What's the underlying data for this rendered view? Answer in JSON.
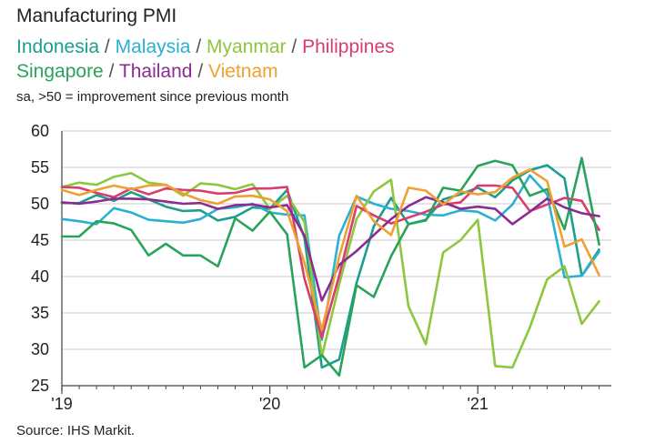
{
  "chart_data": {
    "type": "line",
    "title": "Manufacturing PMI",
    "subtitle": "sa, >50 = improvement since previous month",
    "source": "Source: IHS Markit.",
    "separator": "/",
    "xlabel": "",
    "ylabel": "",
    "ylim": [
      25,
      60
    ],
    "yticks": [
      60,
      55,
      50,
      45,
      40,
      35,
      30,
      25
    ],
    "xticks": [
      {
        "label": "'19",
        "month_index": 0
      },
      {
        "label": "'20",
        "month_index": 12
      },
      {
        "label": "'21",
        "month_index": 24
      }
    ],
    "months": [
      "Jan 19",
      "Feb 19",
      "Mar 19",
      "Apr 19",
      "May 19",
      "Jun 19",
      "Jul 19",
      "Aug 19",
      "Sep 19",
      "Oct 19",
      "Nov 19",
      "Dec 19",
      "Jan 20",
      "Feb 20",
      "Mar 20",
      "Apr 20",
      "May 20",
      "Jun 20",
      "Jul 20",
      "Aug 20",
      "Sep 20",
      "Oct 20",
      "Nov 20",
      "Dec 20",
      "Jan 21",
      "Feb 21",
      "Mar 21",
      "Apr 21",
      "May 21",
      "Jun 21",
      "Jul 21",
      "Aug 21"
    ],
    "grid": "horizontal",
    "series": [
      {
        "name": "Indonesia",
        "color": "#1a9f8f",
        "values": [
          50.1,
          50.1,
          51.2,
          50.4,
          51.6,
          50.6,
          49.6,
          49.0,
          49.1,
          47.7,
          48.2,
          49.5,
          49.3,
          51.9,
          45.3,
          27.5,
          28.6,
          39.1,
          46.9,
          50.8,
          47.2,
          47.8,
          50.6,
          51.3,
          52.2,
          50.9,
          53.2,
          54.6,
          55.3,
          53.5,
          40.1,
          43.7
        ]
      },
      {
        "name": "Malaysia",
        "color": "#2bb0d4",
        "values": [
          47.9,
          47.6,
          47.2,
          49.4,
          48.8,
          47.8,
          47.6,
          47.4,
          47.9,
          49.3,
          49.5,
          50.0,
          48.8,
          48.5,
          48.4,
          31.3,
          45.6,
          51.0,
          50.0,
          49.3,
          49.0,
          48.5,
          48.4,
          49.1,
          48.9,
          47.7,
          49.9,
          53.9,
          51.3,
          39.9,
          40.1,
          43.4
        ]
      },
      {
        "name": "Myanmar",
        "color": "#8dc63f",
        "values": [
          52.3,
          52.9,
          52.6,
          53.7,
          54.2,
          52.9,
          52.6,
          51.1,
          52.8,
          52.6,
          52.0,
          52.7,
          49.3,
          51.1,
          47.5,
          29.0,
          38.9,
          47.9,
          51.7,
          53.3,
          35.9,
          30.7,
          43.3,
          45.0,
          47.8,
          27.7,
          27.5,
          33.0,
          39.6,
          41.4,
          33.5,
          36.6
        ]
      },
      {
        "name": "Philippines",
        "color": "#d93c6e",
        "values": [
          52.3,
          52.2,
          51.5,
          50.9,
          52.1,
          51.3,
          52.1,
          51.9,
          51.8,
          51.4,
          51.5,
          52.1,
          52.1,
          52.3,
          39.7,
          31.6,
          40.1,
          49.7,
          48.4,
          47.3,
          48.1,
          48.9,
          49.9,
          50.2,
          52.5,
          52.5,
          52.2,
          49.0,
          49.9,
          50.8,
          50.4,
          46.4
        ]
      },
      {
        "name": "Singapore",
        "color": "#2aa35a",
        "values": [
          45.5,
          45.5,
          47.6,
          47.3,
          46.4,
          42.9,
          44.5,
          42.9,
          42.9,
          41.4,
          48.0,
          46.3,
          48.9,
          45.8,
          27.5,
          29.2,
          26.4,
          38.8,
          37.2,
          42.8,
          47.2,
          47.7,
          52.2,
          51.8,
          55.2,
          55.9,
          55.3,
          51.1,
          52.0,
          46.5,
          56.3,
          44.4
        ]
      },
      {
        "name": "Thailand",
        "color": "#8b2c8f",
        "values": [
          50.2,
          50.0,
          50.3,
          50.7,
          50.7,
          50.6,
          50.3,
          50.0,
          50.1,
          49.3,
          49.8,
          49.9,
          49.5,
          49.8,
          45.6,
          36.7,
          41.6,
          43.5,
          45.7,
          47.9,
          49.7,
          50.9,
          50.2,
          49.3,
          49.6,
          49.3,
          47.2,
          48.9,
          50.7,
          49.5,
          48.7,
          48.3
        ]
      },
      {
        "name": "Vietnam",
        "color": "#f0a030",
        "values": [
          51.9,
          51.2,
          51.9,
          52.5,
          52.0,
          52.5,
          52.6,
          51.4,
          50.5,
          50.0,
          51.0,
          51.1,
          50.6,
          49.0,
          41.9,
          32.7,
          42.7,
          51.1,
          47.6,
          45.7,
          52.2,
          51.8,
          49.9,
          51.7,
          51.3,
          51.6,
          53.6,
          54.7,
          53.1,
          44.1,
          45.1,
          40.2
        ]
      }
    ]
  }
}
